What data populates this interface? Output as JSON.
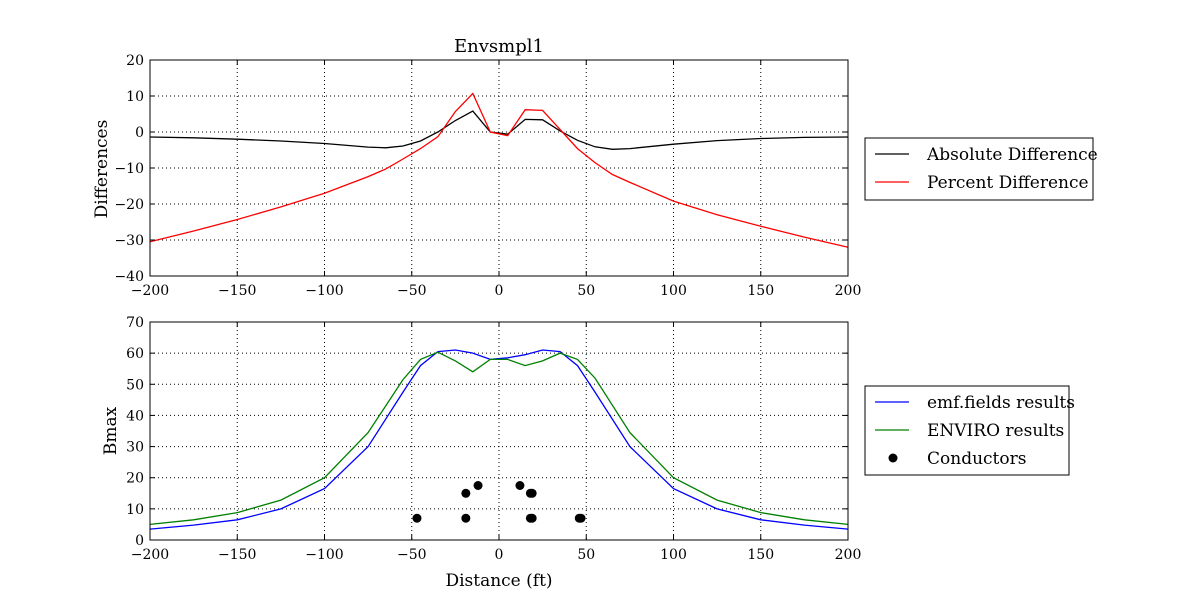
{
  "chart_data": [
    {
      "type": "line",
      "title": "Envsmpl1",
      "xlabel": "",
      "ylabel": "Differences",
      "xlim": [
        -200,
        200
      ],
      "ylim": [
        -40,
        20
      ],
      "xticks": [
        "−200",
        "−150",
        "−100",
        "−50",
        "0",
        "50",
        "100",
        "150",
        "200"
      ],
      "yticks": [
        "20",
        "10",
        "0",
        "−10",
        "−20",
        "−30",
        "−40"
      ],
      "grid": true,
      "legend": "right-outside",
      "series": [
        {
          "name": "Absolute Difference",
          "color": "#000000",
          "x": [
            -200,
            -175,
            -150,
            -125,
            -100,
            -75,
            -65,
            -55,
            -45,
            -35,
            -25,
            -15,
            -5,
            5,
            15,
            25,
            35,
            45,
            55,
            65,
            75,
            100,
            125,
            150,
            175,
            200
          ],
          "y": [
            -1.4,
            -1.6,
            -2.0,
            -2.5,
            -3.2,
            -4.2,
            -4.4,
            -3.9,
            -2.5,
            0.0,
            3.2,
            5.8,
            0.0,
            -0.6,
            3.5,
            3.4,
            0.3,
            -2.3,
            -4.1,
            -4.8,
            -4.6,
            -3.4,
            -2.4,
            -1.8,
            -1.5,
            -1.4
          ]
        },
        {
          "name": "Percent Difference",
          "color": "#ff0000",
          "x": [
            -200,
            -175,
            -150,
            -125,
            -100,
            -75,
            -65,
            -55,
            -45,
            -35,
            -25,
            -15,
            -5,
            5,
            15,
            25,
            35,
            45,
            55,
            65,
            75,
            100,
            125,
            150,
            175,
            200
          ],
          "y": [
            -30.5,
            -27.5,
            -24.3,
            -20.8,
            -17.0,
            -12.4,
            -10.3,
            -7.5,
            -4.6,
            -1.3,
            5.7,
            10.7,
            0.0,
            -1.0,
            6.2,
            6.0,
            0.7,
            -4.6,
            -8.5,
            -11.8,
            -14.0,
            -19.2,
            -23.0,
            -26.2,
            -29.2,
            -32.0
          ]
        }
      ]
    },
    {
      "type": "line",
      "title": "",
      "xlabel": "Distance (ft)",
      "ylabel": "Bmax",
      "xlim": [
        -200,
        200
      ],
      "ylim": [
        0,
        70
      ],
      "xticks": [
        "−200",
        "−150",
        "−100",
        "−50",
        "0",
        "50",
        "100",
        "150",
        "200"
      ],
      "yticks": [
        "70",
        "60",
        "50",
        "40",
        "30",
        "20",
        "10",
        "0"
      ],
      "grid": true,
      "legend": "right-outside",
      "series": [
        {
          "name": "emf.fields results",
          "color": "#0000ff",
          "x": [
            -200,
            -175,
            -150,
            -125,
            -100,
            -75,
            -55,
            -45,
            -35,
            -25,
            -15,
            -5,
            5,
            15,
            25,
            35,
            45,
            55,
            75,
            100,
            125,
            150,
            175,
            200
          ],
          "y": [
            3.5,
            4.8,
            6.5,
            10.0,
            16.5,
            30.0,
            47.5,
            56.0,
            60.5,
            61.0,
            60.0,
            58.0,
            58.5,
            59.5,
            61.0,
            60.5,
            56.0,
            47.5,
            30.0,
            16.5,
            10.0,
            6.5,
            4.8,
            3.5
          ]
        },
        {
          "name": "ENVIRO results",
          "color": "#008000",
          "x": [
            -200,
            -175,
            -150,
            -125,
            -100,
            -75,
            -55,
            -45,
            -35,
            -25,
            -15,
            -5,
            5,
            15,
            25,
            35,
            45,
            55,
            75,
            100,
            125,
            150,
            175,
            200
          ],
          "y": [
            5.0,
            6.5,
            8.8,
            12.8,
            20.0,
            34.5,
            51.5,
            58.0,
            60.3,
            57.5,
            54.0,
            58.0,
            58.0,
            56.0,
            57.5,
            60.0,
            58.0,
            52.0,
            34.5,
            20.0,
            12.8,
            8.8,
            6.5,
            5.0
          ]
        },
        {
          "name": "Conductors",
          "color": "#000000",
          "marker": "o",
          "x": [
            -47,
            -19,
            -19,
            -12,
            12,
            18,
            19,
            18,
            19,
            46,
            47
          ],
          "y": [
            7,
            7,
            15,
            17.5,
            17.5,
            15,
            15,
            7,
            7,
            7,
            7
          ]
        }
      ]
    }
  ]
}
